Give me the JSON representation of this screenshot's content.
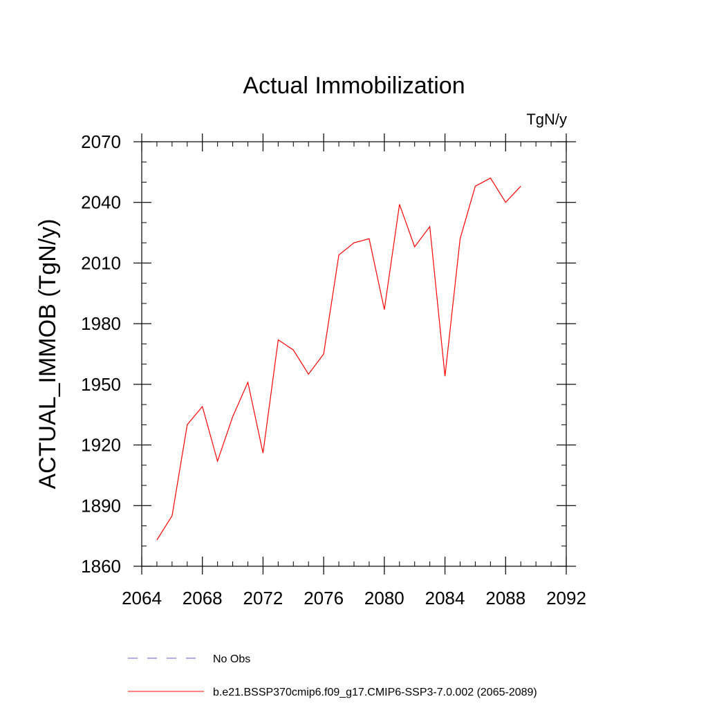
{
  "chart_data": {
    "type": "line",
    "title": "Actual Immobilization",
    "units_label": "TgN/y",
    "xlabel": "",
    "ylabel": "ACTUAL_IMMOB  (TgN/y)",
    "xlim": [
      2064,
      2092
    ],
    "ylim": [
      1860,
      2070
    ],
    "x_ticks": [
      2064,
      2068,
      2072,
      2076,
      2080,
      2084,
      2088,
      2092
    ],
    "x_tick_labels": [
      "2064",
      "2068",
      "2072",
      "2076",
      "2080",
      "2084",
      "2088",
      "2092"
    ],
    "y_ticks": [
      1860,
      1890,
      1920,
      1950,
      1980,
      2010,
      2040,
      2070
    ],
    "y_tick_labels": [
      "1860",
      "1890",
      "1920",
      "1950",
      "1980",
      "2010",
      "2040",
      "2070"
    ],
    "x_minor_step": 1,
    "y_minor_step": 10,
    "grid": false,
    "legend_position": "bottom",
    "series": [
      {
        "name": "b.e21.BSSP370cmip6.f09_g17.CMIP6-SSP3-7.0.002 (2065-2089)",
        "color": "#ff0000",
        "line_style": "solid",
        "x": [
          2065,
          2066,
          2067,
          2068,
          2069,
          2070,
          2071,
          2072,
          2073,
          2074,
          2075,
          2076,
          2077,
          2078,
          2079,
          2080,
          2081,
          2082,
          2083,
          2084,
          2085,
          2086,
          2087,
          2088,
          2089
        ],
        "values": [
          1873,
          1885,
          1930,
          1939,
          1912,
          1934,
          1951,
          1916,
          1972,
          1967,
          1955,
          1965,
          2014,
          2020,
          2022,
          1987,
          2039,
          2018,
          2028,
          1954,
          2022,
          2048,
          2052,
          2040,
          2048
        ]
      }
    ],
    "legend": [
      {
        "label": "No Obs",
        "color": "#6a5acd",
        "line_style": "dashed"
      },
      {
        "label": "b.e21.BSSP370cmip6.f09_g17.CMIP6-SSP3-7.0.002 (2065-2089)",
        "color": "#ff0000",
        "line_style": "solid"
      }
    ]
  }
}
